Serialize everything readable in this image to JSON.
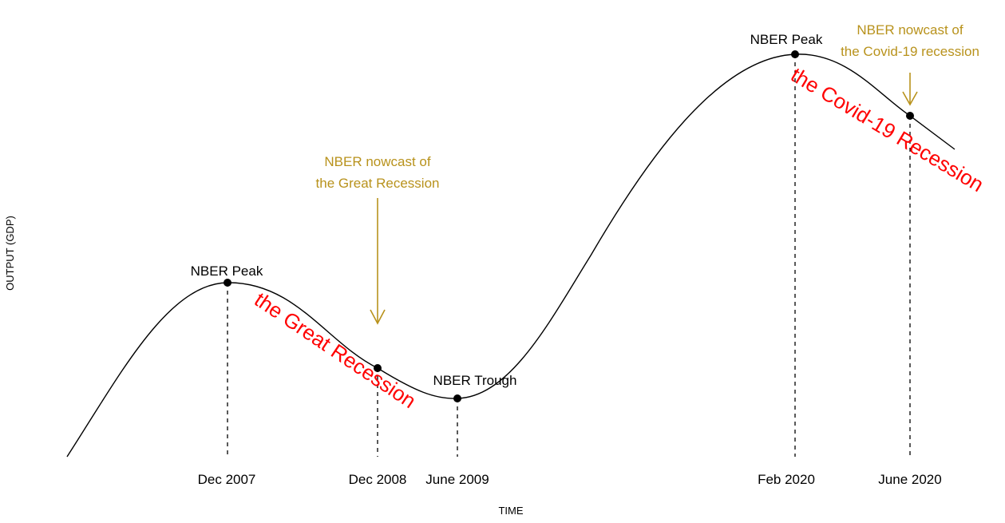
{
  "axes": {
    "x_title": "TIME",
    "y_title": "OUTPUT (GDP)"
  },
  "ticks": {
    "dec2007": "Dec 2007",
    "dec2008": "Dec 2008",
    "jun2009": "June 2009",
    "feb2020": "Feb 2020",
    "jun2020": "June 2020"
  },
  "points": {
    "peak1": "NBER Peak",
    "trough": "NBER Trough",
    "peak2": "NBER Peak"
  },
  "nowcasts": {
    "great_line1": "NBER nowcast of",
    "great_line2": "the Great Recession",
    "covid_line1": "NBER nowcast of",
    "covid_line2": "the Covid-19 recession"
  },
  "recessions": {
    "great": "the Great Recession",
    "covid": "the Covid-19 Recession"
  },
  "colors": {
    "curve": "#000000",
    "nowcast": "#b8921c",
    "recession": "#ff0000"
  }
}
